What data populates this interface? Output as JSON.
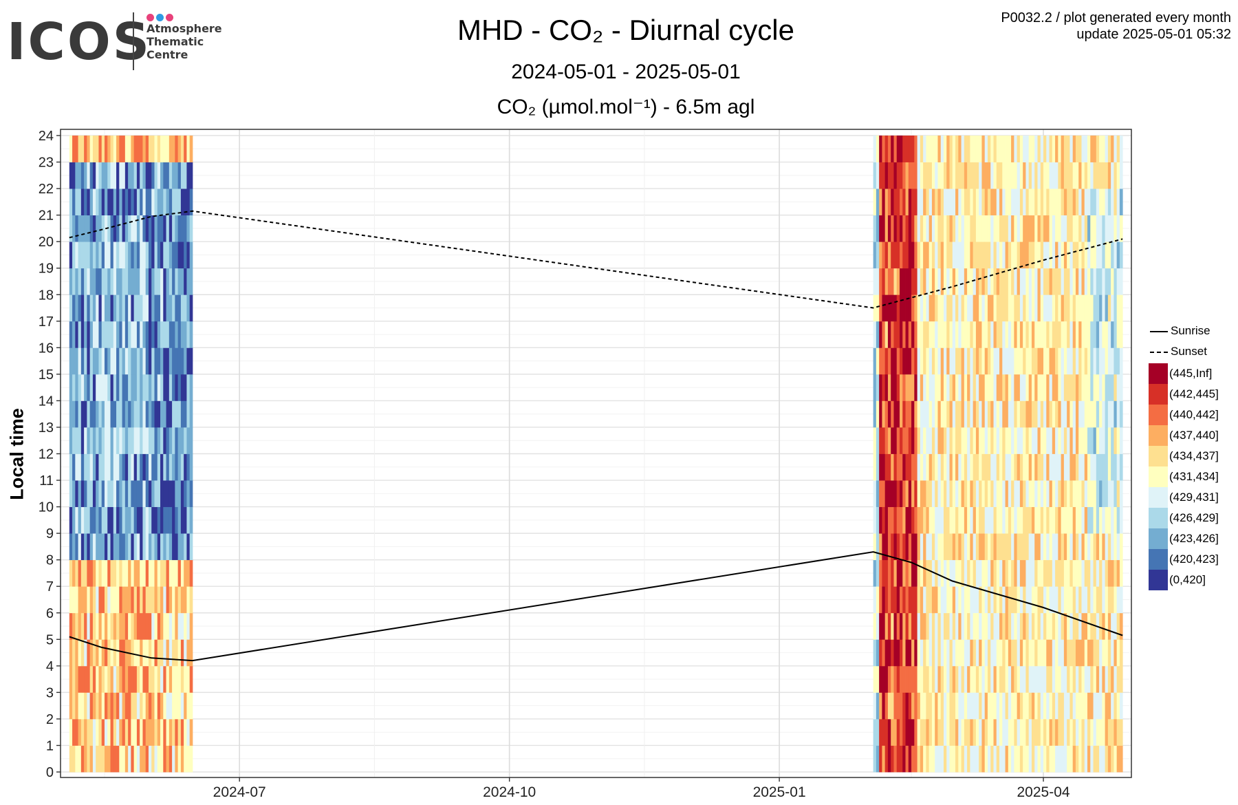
{
  "header": {
    "logo": {
      "word": "ICOS",
      "lines": [
        "Atmosphere",
        "Thematic",
        "Centre"
      ],
      "dot_colors": [
        "#e8417b",
        "#2f9be3",
        "#e8417b"
      ]
    },
    "title": "MHD - CO₂ - Diurnal cycle",
    "subtitle": "2024-05-01 - 2025-05-01",
    "series_title": "CO₂ (µmol.mol⁻¹) - 6.5m agl",
    "meta_line1": "P0032.2 / plot generated every month",
    "meta_line2": "update  2025-05-01 05:32"
  },
  "chart_data": {
    "type": "heatmap",
    "ylabel": "Local time",
    "xlabel": "",
    "x_range": [
      "2024-05-01",
      "2025-05-01"
    ],
    "y_range": [
      0,
      24
    ],
    "y_ticks": [
      0,
      1,
      2,
      3,
      4,
      5,
      6,
      7,
      8,
      9,
      10,
      11,
      12,
      13,
      14,
      15,
      16,
      17,
      18,
      19,
      20,
      21,
      22,
      23,
      24
    ],
    "x_ticks": [
      "2024-07",
      "2024-10",
      "2025-01",
      "2025-04"
    ],
    "x_tick_dates": [
      "2024-07-01",
      "2024-10-01",
      "2025-01-01",
      "2025-04-01"
    ],
    "grid": true,
    "data_periods": [
      {
        "start": "2024-05-04",
        "end": "2024-06-15"
      },
      {
        "start": "2025-02-02",
        "end": "2025-04-28"
      }
    ],
    "lines": [
      {
        "name": "Sunrise",
        "style": "solid",
        "points": [
          [
            "2024-05-04",
            5.1
          ],
          [
            "2024-05-15",
            4.7
          ],
          [
            "2024-06-01",
            4.3
          ],
          [
            "2024-06-15",
            4.2
          ],
          [
            "2025-02-02",
            8.3
          ],
          [
            "2025-02-15",
            7.9
          ],
          [
            "2025-03-01",
            7.2
          ],
          [
            "2025-04-01",
            6.2
          ],
          [
            "2025-04-28",
            5.15
          ]
        ]
      },
      {
        "name": "Sunset",
        "style": "dashed",
        "points": [
          [
            "2024-05-04",
            20.15
          ],
          [
            "2024-05-15",
            20.45
          ],
          [
            "2024-06-01",
            20.95
          ],
          [
            "2024-06-15",
            21.15
          ],
          [
            "2025-02-02",
            17.5
          ],
          [
            "2025-03-01",
            18.3
          ],
          [
            "2025-04-01",
            19.3
          ],
          [
            "2025-04-28",
            20.1
          ]
        ]
      }
    ],
    "legend": {
      "placement": "right",
      "lines": [
        {
          "name": "Sunrise",
          "style": "solid"
        },
        {
          "name": "Sunset",
          "style": "dashed"
        }
      ],
      "bins": [
        {
          "label": "(445,Inf]",
          "color": "#a50026"
        },
        {
          "label": "(442,445]",
          "color": "#d73027"
        },
        {
          "label": "(440,442]",
          "color": "#f46d43"
        },
        {
          "label": "(437,440]",
          "color": "#fdae61"
        },
        {
          "label": "(434,437]",
          "color": "#fee090"
        },
        {
          "label": "(431,434]",
          "color": "#ffffbf"
        },
        {
          "label": "(429,431]",
          "color": "#e0f3f8"
        },
        {
          "label": "(426,429]",
          "color": "#abd9e9"
        },
        {
          "label": "(423,426]",
          "color": "#74add1"
        },
        {
          "label": "(420,423]",
          "color": "#4575b4"
        },
        {
          "label": "(0,420]",
          "color": "#313695"
        }
      ]
    }
  }
}
